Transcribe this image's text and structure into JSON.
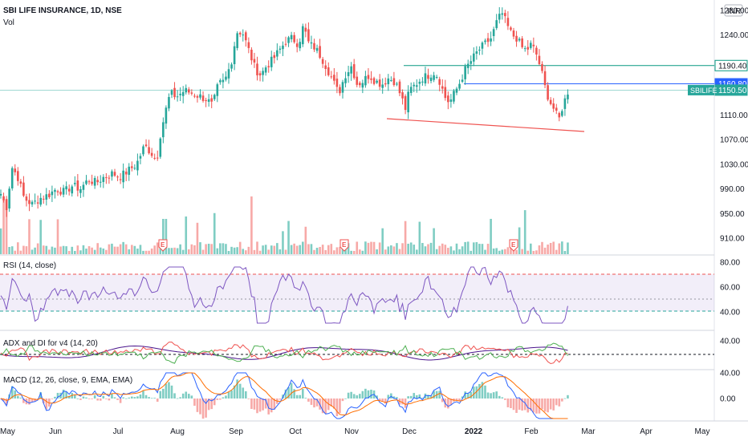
{
  "header": {
    "title": "SBI LIFE INSURANCE, 1D, NSE",
    "vol_label": "Vol",
    "currency": "INR"
  },
  "panes": {
    "rsi_label": "RSI (14, close)",
    "adx_label": "ADX and DI for v4 (14, 20)",
    "macd_label": "MACD (12, 26, close, 9, EMA, EMA)"
  },
  "price_axis": {
    "ticks": [
      1280,
      1240,
      1190.4,
      1160.8,
      1150.5,
      1110,
      1070,
      1030,
      990,
      950,
      910
    ],
    "tick_labels": [
      "1280.00",
      "1240.00",
      "1110.00",
      "1070.00",
      "1030.00",
      "990.00",
      "950.00",
      "910.00"
    ],
    "tick_values": [
      1280,
      1240,
      1110,
      1070,
      1030,
      990,
      950,
      910
    ]
  },
  "badges": [
    {
      "text": "1190.40",
      "value": 1190.4,
      "bg": "#ffffff",
      "border": "#089981",
      "fg": "#131722",
      "kind": "level-green"
    },
    {
      "text": "1160.80",
      "value": 1160.8,
      "bg": "#2962ff",
      "border": "#2962ff",
      "fg": "#ffffff",
      "kind": "level-blue"
    },
    {
      "text": "1150.50",
      "value": 1150.5,
      "bg": "#26a69a",
      "border": "#26a69a",
      "fg": "#ffffff",
      "kind": "last"
    }
  ],
  "last_symbol": "SBILIFE",
  "rsi_axis": [
    "80.00",
    "60.00",
    "40.00"
  ],
  "adx_axis": [
    "40.00"
  ],
  "macd_axis": [
    "40.00",
    "0.00"
  ],
  "x_labels": [
    {
      "text": "May",
      "x": 0
    },
    {
      "text": "Jun",
      "x": 69
    },
    {
      "text": "Jul",
      "x": 147
    },
    {
      "text": "Aug",
      "x": 221
    },
    {
      "text": "Sep",
      "x": 294
    },
    {
      "text": "Oct",
      "x": 368
    },
    {
      "text": "Nov",
      "x": 438
    },
    {
      "text": "Dec",
      "x": 510
    },
    {
      "text": "2022",
      "x": 590
    },
    {
      "text": "Feb",
      "x": 662
    },
    {
      "text": "Mar",
      "x": 733
    },
    {
      "text": "Apr",
      "x": 805
    },
    {
      "text": "May",
      "x": 875
    }
  ],
  "earnings_markers": [
    {
      "text": "E",
      "x": 203
    },
    {
      "text": "E",
      "x": 429
    },
    {
      "text": "E",
      "x": 640
    }
  ],
  "colors": {
    "up": "#26a69a",
    "down": "#ef5350",
    "vol_up": "#7fcdc3",
    "vol_down": "#f7a9a7",
    "rsi": "#7e57c2",
    "adx": "#4a148c",
    "di_plus": "#4caf50",
    "di_minus": "#ef5350",
    "macd": "#2962ff",
    "signal": "#ff6d00",
    "hline_green": "#089981",
    "hline_blue": "#2962ff",
    "trend_red": "#ef5350"
  },
  "chart_data": {
    "type": "candlestick",
    "title": "SBI LIFE INSURANCE, 1D, NSE",
    "x_range": [
      "May 2021",
      "May 2022"
    ],
    "price_range": [
      890,
      1290
    ],
    "approx_close_path": [
      [
        0,
        985
      ],
      [
        8,
        960
      ],
      [
        15,
        1025
      ],
      [
        22,
        1010
      ],
      [
        30,
        975
      ],
      [
        40,
        965
      ],
      [
        50,
        975
      ],
      [
        60,
        980
      ],
      [
        70,
        990
      ],
      [
        80,
        985
      ],
      [
        90,
        995
      ],
      [
        100,
        990
      ],
      [
        110,
        1005
      ],
      [
        120,
        1000
      ],
      [
        130,
        1010
      ],
      [
        140,
        1015
      ],
      [
        150,
        1010
      ],
      [
        160,
        1020
      ],
      [
        170,
        1030
      ],
      [
        180,
        1060
      ],
      [
        188,
        1050
      ],
      [
        195,
        1035
      ],
      [
        200,
        1080
      ],
      [
        206,
        1115
      ],
      [
        212,
        1145
      ],
      [
        220,
        1140
      ],
      [
        230,
        1150
      ],
      [
        240,
        1145
      ],
      [
        250,
        1140
      ],
      [
        258,
        1135
      ],
      [
        265,
        1125
      ],
      [
        272,
        1160
      ],
      [
        280,
        1165
      ],
      [
        288,
        1195
      ],
      [
        295,
        1245
      ],
      [
        302,
        1245
      ],
      [
        310,
        1215
      ],
      [
        318,
        1185
      ],
      [
        325,
        1175
      ],
      [
        332,
        1190
      ],
      [
        340,
        1200
      ],
      [
        348,
        1215
      ],
      [
        356,
        1230
      ],
      [
        364,
        1235
      ],
      [
        372,
        1225
      ],
      [
        378,
        1255
      ],
      [
        385,
        1225
      ],
      [
        392,
        1220
      ],
      [
        400,
        1205
      ],
      [
        408,
        1185
      ],
      [
        415,
        1165
      ],
      [
        422,
        1145
      ],
      [
        430,
        1175
      ],
      [
        438,
        1190
      ],
      [
        445,
        1160
      ],
      [
        452,
        1165
      ],
      [
        460,
        1175
      ],
      [
        468,
        1165
      ],
      [
        476,
        1160
      ],
      [
        484,
        1170
      ],
      [
        492,
        1165
      ],
      [
        500,
        1140
      ],
      [
        505,
        1120
      ],
      [
        510,
        1150
      ],
      [
        518,
        1160
      ],
      [
        526,
        1170
      ],
      [
        534,
        1175
      ],
      [
        542,
        1180
      ],
      [
        548,
        1165
      ],
      [
        554,
        1140
      ],
      [
        560,
        1130
      ],
      [
        566,
        1145
      ],
      [
        572,
        1160
      ],
      [
        580,
        1185
      ],
      [
        588,
        1200
      ],
      [
        596,
        1215
      ],
      [
        604,
        1225
      ],
      [
        612,
        1235
      ],
      [
        620,
        1265
      ],
      [
        626,
        1275
      ],
      [
        632,
        1255
      ],
      [
        638,
        1240
      ],
      [
        644,
        1235
      ],
      [
        650,
        1220
      ],
      [
        656,
        1215
      ],
      [
        662,
        1225
      ],
      [
        668,
        1210
      ],
      [
        674,
        1185
      ],
      [
        680,
        1150
      ],
      [
        686,
        1130
      ],
      [
        692,
        1115
      ],
      [
        696,
        1100
      ],
      [
        700,
        1120
      ],
      [
        704,
        1135
      ],
      [
        708,
        1150
      ]
    ],
    "levels": [
      1190.4,
      1160.8,
      1150.5
    ],
    "last": 1150.5
  }
}
